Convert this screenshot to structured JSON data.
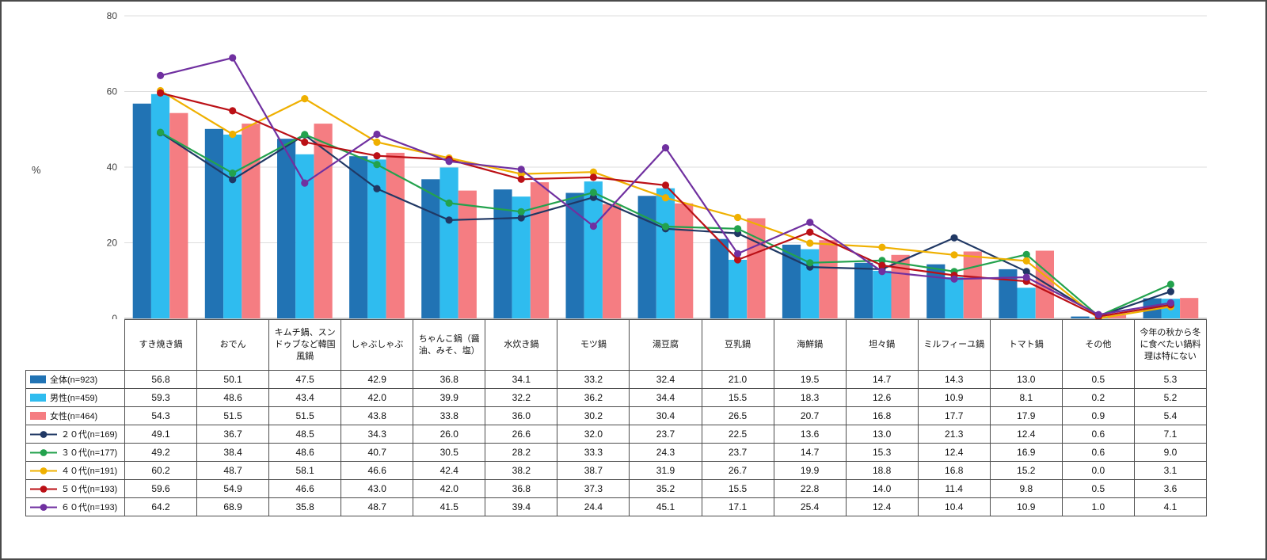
{
  "chart_data": {
    "type": "combo-bar-line",
    "title": "",
    "ylabel": "%",
    "ylim": [
      0,
      80
    ],
    "yticks": [
      0,
      20,
      40,
      60,
      80
    ],
    "grid": true,
    "legend_position": "table-left-column",
    "categories": [
      "すき焼き鍋",
      "おでん",
      "キムチ鍋、スンドゥブなど韓国風鍋",
      "しゃぶしゃぶ",
      "ちゃんこ鍋（醤油、みそ、塩）",
      "水炊き鍋",
      "モツ鍋",
      "湯豆腐",
      "豆乳鍋",
      "海鮮鍋",
      "坦々鍋",
      "ミルフィーユ鍋",
      "トマト鍋",
      "その他",
      "今年の秋から冬に食べたい鍋料理は特にない"
    ],
    "bar_series": [
      {
        "name": "全体(n=923)",
        "color": "#2173B4",
        "values": [
          56.8,
          50.1,
          47.5,
          42.9,
          36.8,
          34.1,
          33.2,
          32.4,
          21.0,
          19.5,
          14.7,
          14.3,
          13.0,
          0.5,
          5.3
        ]
      },
      {
        "name": "男性(n=459)",
        "color": "#2FBCEF",
        "values": [
          59.3,
          48.6,
          43.4,
          42.0,
          39.9,
          32.2,
          36.2,
          34.4,
          15.5,
          18.3,
          12.6,
          10.9,
          8.1,
          0.2,
          5.2
        ]
      },
      {
        "name": "女性(n=464)",
        "color": "#F57D82",
        "values": [
          54.3,
          51.5,
          51.5,
          43.8,
          33.8,
          36.0,
          30.2,
          30.4,
          26.5,
          20.7,
          16.8,
          17.7,
          17.9,
          0.9,
          5.4
        ]
      }
    ],
    "line_series": [
      {
        "name": "２０代(n=169)",
        "color": "#203864",
        "values": [
          49.1,
          36.7,
          48.5,
          34.3,
          26.0,
          26.6,
          32.0,
          23.7,
          22.5,
          13.6,
          13.0,
          21.3,
          12.4,
          0.6,
          7.1
        ]
      },
      {
        "name": "３０代(n=177)",
        "color": "#23A24D",
        "values": [
          49.2,
          38.4,
          48.6,
          40.7,
          30.5,
          28.2,
          33.3,
          24.3,
          23.7,
          14.7,
          15.3,
          12.4,
          16.9,
          0.6,
          9.0
        ]
      },
      {
        "name": "４０代(n=191)",
        "color": "#EFB000",
        "values": [
          60.2,
          48.7,
          58.1,
          46.6,
          42.4,
          38.2,
          38.7,
          31.9,
          26.7,
          19.9,
          18.8,
          16.8,
          15.2,
          0.0,
          3.1
        ]
      },
      {
        "name": "５０代(n=193)",
        "color": "#BB1016",
        "values": [
          59.6,
          54.9,
          46.6,
          43.0,
          42.0,
          36.8,
          37.3,
          35.2,
          15.5,
          22.8,
          14.0,
          11.4,
          9.8,
          0.5,
          3.6
        ]
      },
      {
        "name": "６０代(n=193)",
        "color": "#7030A0",
        "values": [
          64.2,
          68.9,
          35.8,
          48.7,
          41.5,
          39.4,
          24.4,
          45.1,
          17.1,
          25.4,
          12.4,
          10.4,
          10.9,
          1.0,
          4.1
        ]
      }
    ],
    "colors": {
      "gridline": "#DDDDDD",
      "axis": "#909090",
      "tick_text": "#404040",
      "table_border": "#4d4d4d"
    }
  }
}
